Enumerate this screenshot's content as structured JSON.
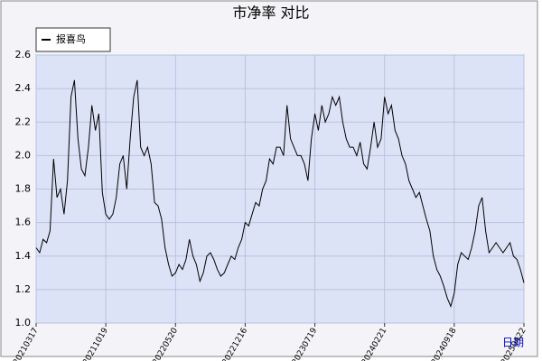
{
  "chart_data": {
    "type": "line",
    "title": "市净率 对比",
    "x_label": "日期",
    "categories": [
      "20210317",
      null,
      null,
      null,
      null,
      null,
      null,
      null,
      null,
      null,
      null,
      null,
      null,
      null,
      null,
      null,
      null,
      null,
      null,
      null,
      "20211019",
      null,
      null,
      null,
      null,
      null,
      null,
      null,
      null,
      null,
      null,
      null,
      null,
      null,
      null,
      null,
      null,
      null,
      null,
      null,
      "20220520",
      null,
      null,
      null,
      null,
      null,
      null,
      null,
      null,
      null,
      null,
      null,
      null,
      null,
      null,
      null,
      null,
      null,
      null,
      null,
      "20221216",
      null,
      null,
      null,
      null,
      null,
      null,
      null,
      null,
      null,
      null,
      null,
      null,
      null,
      null,
      null,
      null,
      null,
      null,
      null,
      "20230719",
      null,
      null,
      null,
      null,
      null,
      null,
      null,
      null,
      null,
      null,
      null,
      null,
      null,
      null,
      null,
      null,
      null,
      null,
      null,
      "20240221",
      null,
      null,
      null,
      null,
      null,
      null,
      null,
      null,
      null,
      null,
      null,
      null,
      null,
      null,
      null,
      null,
      null,
      null,
      null,
      "20240918",
      null,
      null,
      null,
      null,
      null,
      null,
      null,
      null,
      null,
      null,
      null,
      null,
      null,
      null,
      null,
      null,
      null,
      null,
      null,
      "20250422"
    ],
    "series": [
      {
        "name": "报喜鸟",
        "color": "#000000",
        "values": [
          1.45,
          1.42,
          1.5,
          1.48,
          1.55,
          1.98,
          1.75,
          1.8,
          1.65,
          1.85,
          2.35,
          2.45,
          2.1,
          1.92,
          1.88,
          2.05,
          2.3,
          2.15,
          2.25,
          1.78,
          1.65,
          1.62,
          1.65,
          1.75,
          1.95,
          2.0,
          1.8,
          2.1,
          2.35,
          2.45,
          2.05,
          2.0,
          2.05,
          1.95,
          1.72,
          1.7,
          1.62,
          1.45,
          1.35,
          1.28,
          1.3,
          1.35,
          1.32,
          1.38,
          1.5,
          1.4,
          1.35,
          1.25,
          1.3,
          1.4,
          1.42,
          1.38,
          1.32,
          1.28,
          1.3,
          1.35,
          1.4,
          1.38,
          1.45,
          1.5,
          1.6,
          1.58,
          1.65,
          1.72,
          1.7,
          1.8,
          1.85,
          1.98,
          1.95,
          2.05,
          2.05,
          2.0,
          2.3,
          2.1,
          2.05,
          2.0,
          2.0,
          1.95,
          1.85,
          2.1,
          2.25,
          2.15,
          2.3,
          2.2,
          2.25,
          2.35,
          2.3,
          2.35,
          2.2,
          2.1,
          2.05,
          2.05,
          2.0,
          2.08,
          1.95,
          1.92,
          2.05,
          2.2,
          2.05,
          2.1,
          2.35,
          2.25,
          2.3,
          2.15,
          2.1,
          2.0,
          1.95,
          1.85,
          1.8,
          1.75,
          1.78,
          1.7,
          1.62,
          1.55,
          1.4,
          1.32,
          1.28,
          1.22,
          1.15,
          1.1,
          1.18,
          1.35,
          1.42,
          1.4,
          1.38,
          1.45,
          1.55,
          1.7,
          1.75,
          1.55,
          1.42,
          1.45,
          1.48,
          1.45,
          1.42,
          1.45,
          1.48,
          1.4,
          1.38,
          1.32,
          1.24
        ]
      }
    ],
    "ylim": [
      1.0,
      2.6
    ],
    "yticks": [
      {
        "value": 1.0,
        "label": "1.0"
      },
      1.2,
      1.4,
      1.6,
      1.8,
      {
        "value": 2.0,
        "label": "2.0"
      },
      2.2,
      2.4,
      2.6
    ],
    "grid": true
  }
}
